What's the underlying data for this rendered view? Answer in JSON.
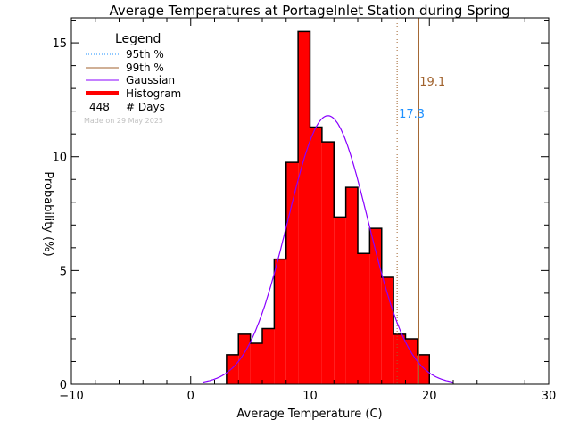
{
  "chart_data": {
    "type": "bar",
    "title": "Average Temperatures at PortageInlet Station during Spring",
    "xlabel": "Average Temperature (C)",
    "ylabel": "Probability (%)",
    "xlim": [
      -10,
      30
    ],
    "ylim": [
      0,
      16.1
    ],
    "xticks": [
      -10,
      0,
      10,
      20,
      30
    ],
    "yticks": [
      0,
      5,
      10,
      15
    ],
    "bin_edges": [
      3,
      4,
      5,
      6,
      7,
      8,
      9,
      10,
      11,
      12,
      13,
      14,
      15,
      16,
      17,
      18,
      19,
      20
    ],
    "values": [
      1.3,
      2.2,
      1.8,
      2.45,
      5.5,
      9.75,
      15.5,
      11.3,
      10.65,
      7.35,
      8.65,
      5.75,
      6.85,
      4.7,
      2.2,
      2.0,
      1.3
    ],
    "gaussian": {
      "mean": 11.5,
      "sigma": 3.38,
      "peak": 11.8,
      "range": [
        1,
        22
      ]
    },
    "p95": {
      "value": 17.3,
      "label": "17.3"
    },
    "p99": {
      "value": 19.1,
      "label": "19.1"
    },
    "legend": {
      "title": "Legend",
      "placement": "top-left",
      "entries": [
        "95th %",
        "99th %",
        "Gaussian",
        "Histogram"
      ],
      "days_count": "448",
      "days_label": "# Days"
    },
    "credit": "Made on 29 May 2025",
    "colors": {
      "bars": "#ff0000",
      "p95": "#1e90ff",
      "p99": "#a0622d",
      "gaussian": "#8800ff"
    }
  }
}
